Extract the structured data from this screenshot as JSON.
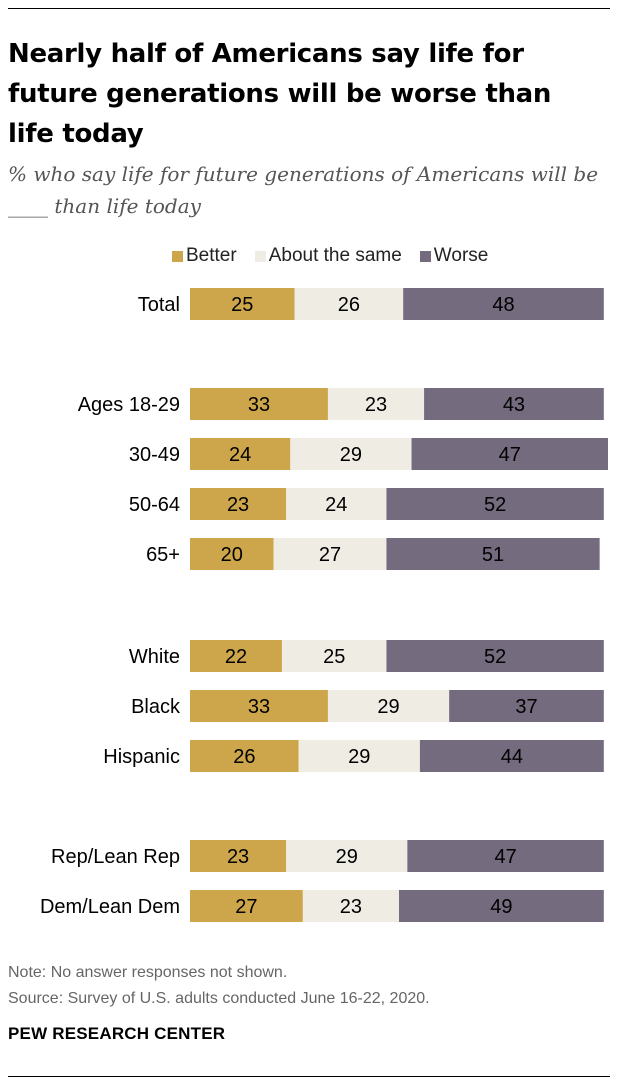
{
  "title": "Nearly half of Americans say life for future generations will be worse than life today",
  "subtitle": "% who say life for future generations of Americans will be ____ than life today",
  "note": "Note: No answer responses not shown.",
  "source": "Source: Survey of U.S. adults conducted June 16-22, 2020.",
  "brand": "PEW RESEARCH CENTER",
  "colors": {
    "better": "#CDA64B",
    "same": "#EFECE4",
    "worse": "#746B7F"
  },
  "chart_data": {
    "type": "bar",
    "orientation": "horizontal",
    "stacked": true,
    "xlim": [
      0,
      100
    ],
    "grid": false,
    "legend_position": "top",
    "legend": [
      "Better",
      "About the same",
      "Worse"
    ],
    "categories": [
      "Total",
      "Ages 18-29",
      "30-49",
      "50-64",
      "65+",
      "White",
      "Black",
      "Hispanic",
      "Rep/Lean Rep",
      "Dem/Lean Dem"
    ],
    "series": [
      {
        "name": "Better",
        "values": [
          25,
          33,
          24,
          23,
          20,
          22,
          33,
          26,
          23,
          27
        ]
      },
      {
        "name": "About the same",
        "values": [
          26,
          23,
          29,
          24,
          27,
          25,
          29,
          29,
          29,
          23
        ]
      },
      {
        "name": "Worse",
        "values": [
          48,
          43,
          47,
          52,
          51,
          52,
          37,
          44,
          47,
          49
        ]
      }
    ]
  }
}
